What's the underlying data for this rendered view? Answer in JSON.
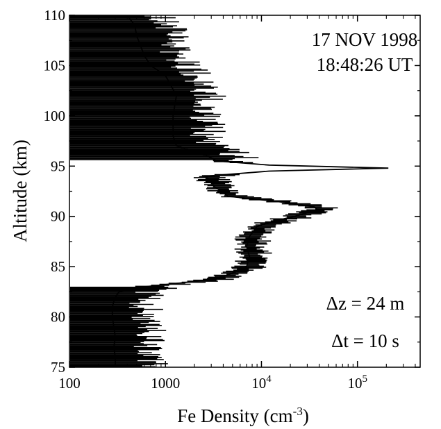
{
  "chart_data": {
    "type": "line",
    "title": "",
    "xlabel": "Fe Density (cm",
    "xlabel_exponent": "-3",
    "xlabel_suffix": ")",
    "ylabel": "Altitude (km)",
    "x_scale": "log",
    "xlim": [
      100,
      450000
    ],
    "ylim": [
      75,
      110
    ],
    "grid": false,
    "x_ticks": [
      {
        "value": 100,
        "base": "100",
        "exp": ""
      },
      {
        "value": 1000,
        "base": "1000",
        "exp": ""
      },
      {
        "value": 10000,
        "base": "10",
        "exp": "4"
      },
      {
        "value": 100000,
        "base": "10",
        "exp": "5"
      }
    ],
    "y_ticks": [
      75,
      80,
      85,
      90,
      95,
      100,
      105,
      110
    ],
    "annotations": {
      "date": "17 NOV 1998",
      "time": "18:48:26 UT",
      "dz": "Δz = 24 m",
      "dt": "Δt = 10 s"
    },
    "series": [
      {
        "values": [
          {
            "y": 75.0,
            "x": 300
          },
          {
            "y": 76.0,
            "x": 300
          },
          {
            "y": 77.0,
            "x": 290
          },
          {
            "y": 78.0,
            "x": 300
          },
          {
            "y": 79.0,
            "x": 290
          },
          {
            "y": 80.0,
            "x": 280
          },
          {
            "y": 81.0,
            "x": 280
          },
          {
            "y": 82.0,
            "x": 300
          },
          {
            "y": 82.5,
            "x": 330
          },
          {
            "y": 83.0,
            "x": 600
          },
          {
            "y": 83.3,
            "x": 1200
          },
          {
            "y": 83.6,
            "x": 2400
          },
          {
            "y": 84.0,
            "x": 4000
          },
          {
            "y": 84.5,
            "x": 5500
          },
          {
            "y": 85.0,
            "x": 7000
          },
          {
            "y": 86.0,
            "x": 7500
          },
          {
            "y": 87.0,
            "x": 7000
          },
          {
            "y": 88.0,
            "x": 7500
          },
          {
            "y": 89.0,
            "x": 9000
          },
          {
            "y": 89.5,
            "x": 13000
          },
          {
            "y": 90.0,
            "x": 22000
          },
          {
            "y": 90.7,
            "x": 38000
          },
          {
            "y": 91.0,
            "x": 35000
          },
          {
            "y": 91.5,
            "x": 14000
          },
          {
            "y": 92.0,
            "x": 4500
          },
          {
            "y": 93.0,
            "x": 3200
          },
          {
            "y": 93.5,
            "x": 3000
          },
          {
            "y": 94.0,
            "x": 2600
          },
          {
            "y": 94.5,
            "x": 12000
          },
          {
            "y": 94.8,
            "x": 210000
          },
          {
            "y": 95.1,
            "x": 12000
          },
          {
            "y": 95.5,
            "x": 3500
          },
          {
            "y": 96.0,
            "x": 2800
          },
          {
            "y": 97.0,
            "x": 1300
          },
          {
            "y": 98.0,
            "x": 1200
          },
          {
            "y": 100.0,
            "x": 1200
          },
          {
            "y": 102.0,
            "x": 1300
          },
          {
            "y": 104.0,
            "x": 1000
          },
          {
            "y": 105.0,
            "x": 700
          },
          {
            "y": 106.0,
            "x": 600
          },
          {
            "y": 107.0,
            "x": 550
          },
          {
            "y": 108.0,
            "x": 500
          },
          {
            "y": 109.0,
            "x": 480
          },
          {
            "y": 110.0,
            "x": 400
          }
        ]
      }
    ]
  }
}
